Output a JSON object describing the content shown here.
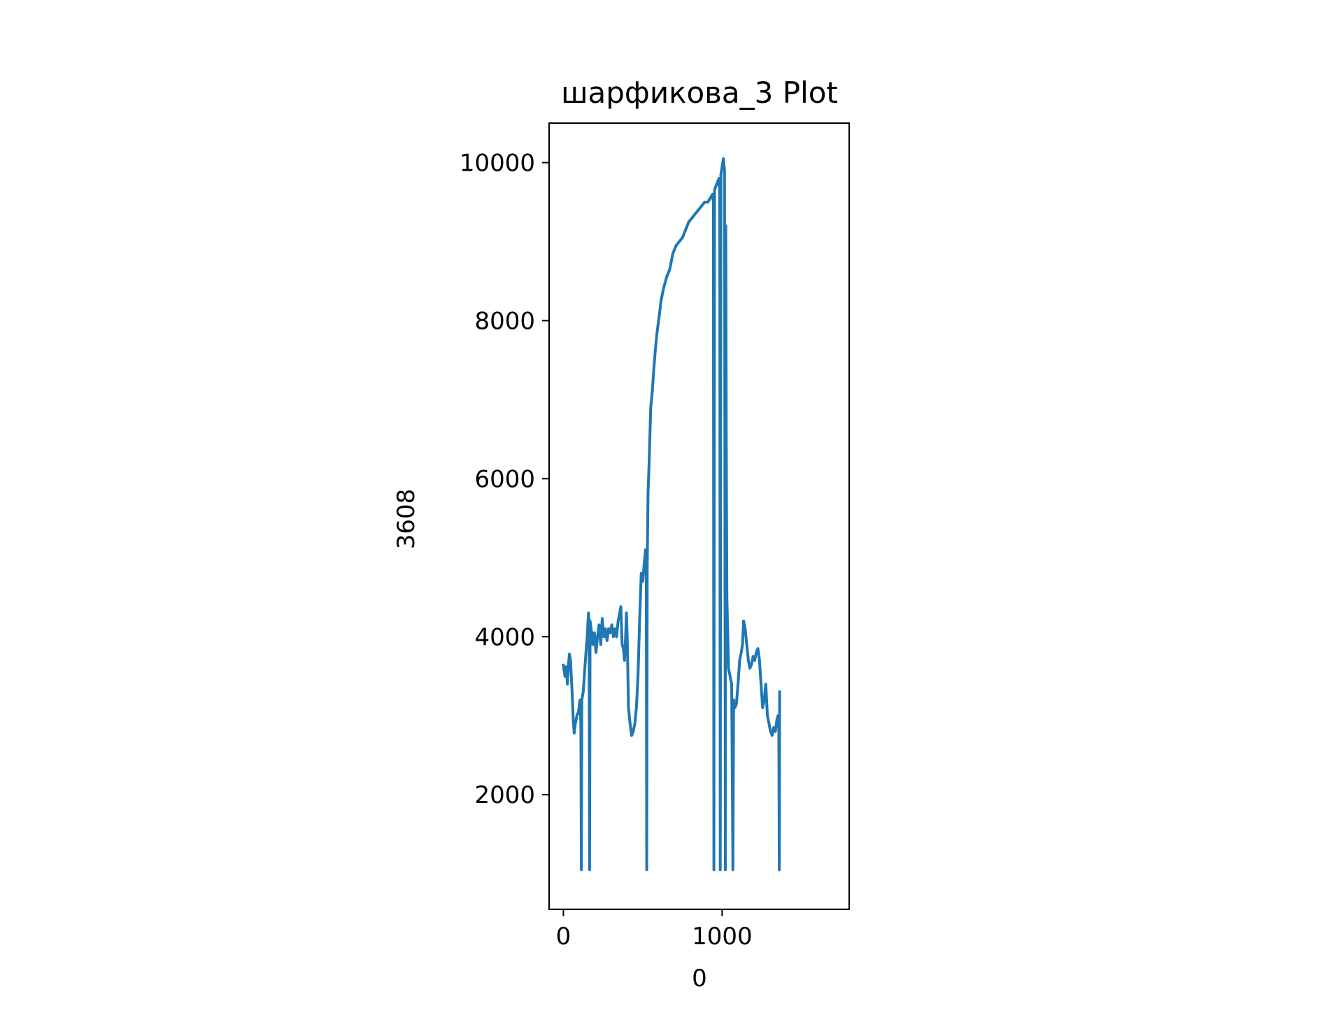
{
  "chart_data": {
    "type": "line",
    "title": "шарфикова_3 Plot",
    "xlabel": "0",
    "ylabel": "3608",
    "xlim": [
      -90,
      1800
    ],
    "ylim": [
      550,
      10500
    ],
    "x_ticks": [
      0,
      1000
    ],
    "y_ticks": [
      2000,
      4000,
      6000,
      8000,
      10000
    ],
    "x_tick_labels": [
      "0",
      "1000"
    ],
    "y_tick_labels": [
      "2000",
      "4000",
      "6000",
      "8000",
      "10000"
    ],
    "grid": false,
    "legend": "none",
    "line_color": "#1f77b4",
    "series": [
      {
        "points": [
          [
            0,
            3640
          ],
          [
            10,
            3500
          ],
          [
            18,
            3620
          ],
          [
            25,
            3400
          ],
          [
            32,
            3650
          ],
          [
            38,
            3780
          ],
          [
            45,
            3700
          ],
          [
            55,
            3300
          ],
          [
            62,
            2950
          ],
          [
            68,
            2780
          ],
          [
            75,
            2900
          ],
          [
            85,
            3000
          ],
          [
            95,
            3050
          ],
          [
            105,
            3200
          ],
          [
            110,
            2900
          ],
          [
            113,
            1050
          ],
          [
            116,
            3200
          ],
          [
            125,
            3300
          ],
          [
            135,
            3600
          ],
          [
            142,
            3800
          ],
          [
            150,
            4000
          ],
          [
            158,
            4300
          ],
          [
            162,
            4200
          ],
          [
            165,
            1050
          ],
          [
            168,
            4200
          ],
          [
            175,
            4100
          ],
          [
            185,
            3900
          ],
          [
            195,
            4050
          ],
          [
            205,
            3800
          ],
          [
            215,
            4000
          ],
          [
            225,
            4150
          ],
          [
            235,
            3900
          ],
          [
            245,
            4230
          ],
          [
            255,
            4000
          ],
          [
            265,
            4100
          ],
          [
            275,
            3950
          ],
          [
            285,
            4100
          ],
          [
            295,
            4050
          ],
          [
            305,
            4150
          ],
          [
            315,
            4000
          ],
          [
            325,
            4100
          ],
          [
            335,
            4000
          ],
          [
            345,
            4200
          ],
          [
            355,
            4300
          ],
          [
            362,
            4380
          ],
          [
            370,
            3900
          ],
          [
            378,
            3850
          ],
          [
            385,
            3700
          ],
          [
            392,
            4000
          ],
          [
            397,
            4300
          ],
          [
            402,
            4000
          ],
          [
            410,
            3100
          ],
          [
            420,
            2900
          ],
          [
            430,
            2750
          ],
          [
            440,
            2800
          ],
          [
            450,
            2900
          ],
          [
            460,
            3100
          ],
          [
            470,
            3500
          ],
          [
            480,
            4200
          ],
          [
            490,
            4800
          ],
          [
            500,
            4700
          ],
          [
            510,
            4950
          ],
          [
            518,
            5100
          ],
          [
            522,
            4800
          ],
          [
            525,
            1050
          ],
          [
            528,
            4900
          ],
          [
            533,
            5800
          ],
          [
            540,
            6200
          ],
          [
            550,
            6900
          ],
          [
            560,
            7100
          ],
          [
            570,
            7400
          ],
          [
            580,
            7650
          ],
          [
            590,
            7850
          ],
          [
            600,
            8000
          ],
          [
            615,
            8250
          ],
          [
            630,
            8400
          ],
          [
            650,
            8550
          ],
          [
            670,
            8650
          ],
          [
            690,
            8850
          ],
          [
            710,
            8950
          ],
          [
            730,
            9000
          ],
          [
            750,
            9050
          ],
          [
            770,
            9150
          ],
          [
            790,
            9250
          ],
          [
            810,
            9300
          ],
          [
            830,
            9350
          ],
          [
            850,
            9400
          ],
          [
            870,
            9450
          ],
          [
            890,
            9500
          ],
          [
            910,
            9500
          ],
          [
            925,
            9550
          ],
          [
            940,
            9600
          ],
          [
            945,
            9500
          ],
          [
            948,
            1050
          ],
          [
            952,
            9650
          ],
          [
            960,
            9700
          ],
          [
            970,
            9750
          ],
          [
            980,
            9800
          ],
          [
            985,
            9600
          ],
          [
            988,
            1050
          ],
          [
            992,
            9850
          ],
          [
            1000,
            9950
          ],
          [
            1008,
            10050
          ],
          [
            1015,
            9900
          ],
          [
            1020,
            1050
          ],
          [
            1023,
            9200
          ],
          [
            1026,
            6500
          ],
          [
            1030,
            4500
          ],
          [
            1040,
            3600
          ],
          [
            1050,
            3500
          ],
          [
            1060,
            3400
          ],
          [
            1068,
            1050
          ],
          [
            1072,
            3200
          ],
          [
            1080,
            3100
          ],
          [
            1090,
            3150
          ],
          [
            1100,
            3400
          ],
          [
            1110,
            3700
          ],
          [
            1120,
            3800
          ],
          [
            1128,
            3900
          ],
          [
            1135,
            4200
          ],
          [
            1145,
            4100
          ],
          [
            1155,
            3900
          ],
          [
            1165,
            3700
          ],
          [
            1175,
            3600
          ],
          [
            1185,
            3650
          ],
          [
            1195,
            3750
          ],
          [
            1205,
            3700
          ],
          [
            1215,
            3800
          ],
          [
            1225,
            3850
          ],
          [
            1235,
            3700
          ],
          [
            1245,
            3400
          ],
          [
            1255,
            3100
          ],
          [
            1265,
            3200
          ],
          [
            1275,
            3400
          ],
          [
            1285,
            3000
          ],
          [
            1295,
            2900
          ],
          [
            1305,
            2800
          ],
          [
            1315,
            2750
          ],
          [
            1325,
            2850
          ],
          [
            1335,
            2800
          ],
          [
            1345,
            2950
          ],
          [
            1352,
            3000
          ],
          [
            1357,
            2950
          ],
          [
            1360,
            1050
          ],
          [
            1362,
            3300
          ]
        ]
      }
    ]
  }
}
